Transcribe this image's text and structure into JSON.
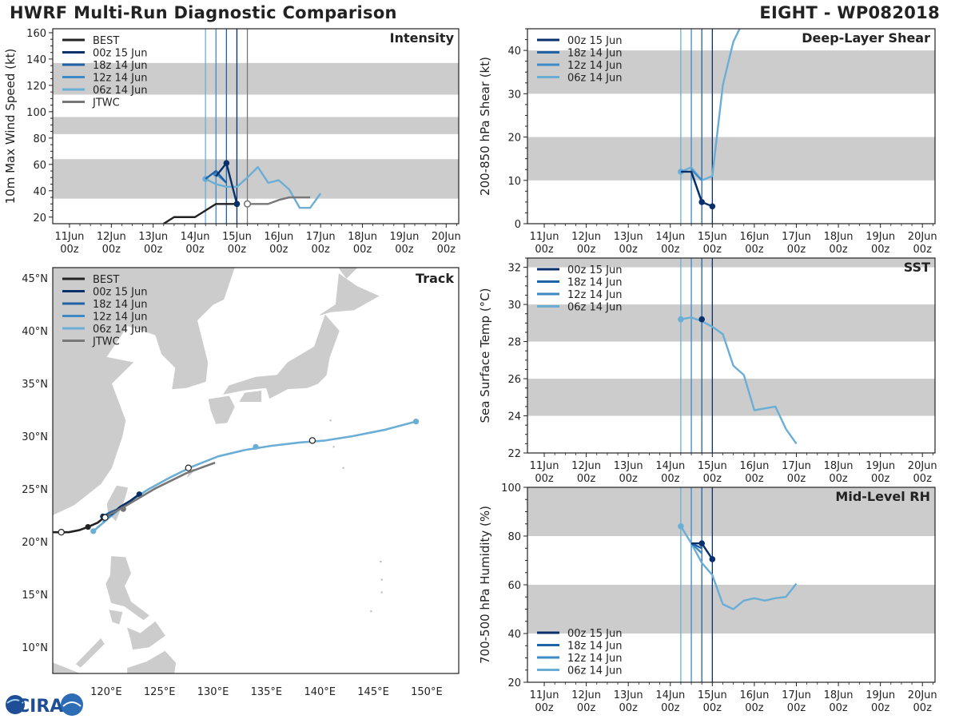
{
  "header": {
    "title": "HWRF Multi-Run Diagnostic Comparison",
    "storm": "EIGHT - WP082018"
  },
  "logo": {
    "text": "CIRA"
  },
  "colors": {
    "BEST": "#222222",
    "r00z15": "#08306b",
    "r18z14": "#1f62a6",
    "r12z14": "#3d8ac6",
    "r06z14": "#6aaed6",
    "JTWC": "#777777",
    "band": "#cccccc"
  },
  "time_ticks": [
    "11Jun",
    "12Jun",
    "13Jun",
    "14Jun",
    "15Jun",
    "16Jun",
    "17Jun",
    "18Jun",
    "19Jun",
    "20Jun"
  ],
  "time_tick_sub": "00z",
  "chart_data": [
    {
      "id": "intensity",
      "type": "line",
      "title": "Intensity",
      "ylabel": "10m Max Wind Speed (kt)",
      "xlim": [
        10.6,
        20.3
      ],
      "ylim": [
        15,
        163
      ],
      "yticks": [
        20,
        40,
        60,
        80,
        100,
        120,
        140,
        160
      ],
      "bands": [
        [
          34,
          64
        ],
        [
          83,
          96
        ],
        [
          113,
          137
        ]
      ],
      "vlines": [
        {
          "x": 14.25,
          "key": "r06z14"
        },
        {
          "x": 14.5,
          "key": "r12z14"
        },
        {
          "x": 14.75,
          "key": "r18z14"
        },
        {
          "x": 15.0,
          "key": "r00z15"
        },
        {
          "x": 15.25,
          "key": "JTWC"
        }
      ],
      "legend": [
        "BEST",
        "00z 15 Jun",
        "18z 14 Jun",
        "12z 14 Jun",
        "06z 14 Jun",
        "JTWC"
      ],
      "series": [
        {
          "name": "BEST",
          "key": "BEST",
          "x": [
            13.25,
            13.5,
            13.75,
            14.0,
            14.25,
            14.5,
            14.75,
            15.0
          ],
          "values": [
            15,
            20,
            20,
            20,
            25,
            30,
            30,
            30
          ],
          "markers": [
            [
              15.0,
              30
            ]
          ]
        },
        {
          "name": "06z 14 Jun",
          "key": "r06z14",
          "x": [
            14.25,
            14.5,
            14.75,
            15.0,
            15.25,
            15.5,
            15.75,
            16.0,
            16.25,
            16.5,
            16.75,
            17.0
          ],
          "values": [
            49,
            45,
            43,
            43,
            50,
            58,
            46,
            48,
            41,
            27,
            27,
            38
          ],
          "markers": [
            [
              14.25,
              49
            ]
          ]
        },
        {
          "name": "12z 14 Jun",
          "key": "r12z14",
          "x": [
            14.5,
            14.75
          ],
          "values": [
            53,
            46
          ],
          "markers": [
            [
              14.5,
              53
            ]
          ]
        },
        {
          "name": "18z 14 Jun",
          "key": "r18z14",
          "x": [
            14.25,
            14.5,
            14.75
          ],
          "values": [
            49,
            55,
            46
          ],
          "markers": []
        },
        {
          "name": "00z 15 Jun",
          "key": "r00z15",
          "x": [
            14.5,
            14.75,
            15.0
          ],
          "values": [
            51,
            61,
            30
          ],
          "markers": [
            [
              14.75,
              61
            ],
            [
              15.0,
              30
            ]
          ]
        },
        {
          "name": "JTWC",
          "key": "JTWC",
          "x": [
            15.25,
            15.5,
            15.75,
            16.0,
            16.25,
            16.5,
            16.75
          ],
          "values": [
            30,
            30,
            30,
            33,
            35,
            35,
            35
          ],
          "markers": [
            [
              15.25,
              30
            ]
          ],
          "open": true
        }
      ]
    },
    {
      "id": "shear",
      "type": "line",
      "title": "Deep-Layer Shear",
      "ylabel": "200-850 hPa Shear (kt)",
      "xlim": [
        10.6,
        20.3
      ],
      "ylim": [
        0,
        45
      ],
      "yticks": [
        0,
        10,
        20,
        30,
        40
      ],
      "bands": [
        [
          10,
          20
        ],
        [
          30,
          40
        ]
      ],
      "vlines": [
        {
          "x": 14.25,
          "key": "r06z14"
        },
        {
          "x": 14.5,
          "key": "r12z14"
        },
        {
          "x": 14.75,
          "key": "r18z14"
        },
        {
          "x": 15.0,
          "key": "r00z15"
        }
      ],
      "legend": [
        "00z 15 Jun",
        "18z 14 Jun",
        "12z 14 Jun",
        "06z 14 Jun"
      ],
      "series": [
        {
          "name": "06z 14 Jun",
          "key": "r06z14",
          "x": [
            14.25,
            14.5,
            14.75,
            15.0,
            15.25,
            15.5,
            15.75
          ],
          "values": [
            12,
            13,
            10,
            11,
            32,
            42,
            47
          ],
          "markers": [
            [
              14.25,
              12
            ]
          ]
        },
        {
          "name": "12z 14 Jun",
          "key": "r12z14",
          "x": [
            14.5,
            14.75
          ],
          "values": [
            12.5,
            10
          ],
          "markers": []
        },
        {
          "name": "18z 14 Jun",
          "key": "r18z14",
          "x": [
            14.5,
            14.75
          ],
          "values": [
            12,
            5
          ],
          "markers": []
        },
        {
          "name": "00z 15 Jun",
          "key": "r00z15",
          "x": [
            14.25,
            14.5,
            14.75,
            15.0
          ],
          "values": [
            12,
            12,
            5,
            4
          ],
          "markers": [
            [
              14.75,
              5
            ],
            [
              15.0,
              4
            ]
          ]
        }
      ]
    },
    {
      "id": "sst",
      "type": "line",
      "title": "SST",
      "ylabel": "Sea Surface Temp (°C)",
      "xlim": [
        10.6,
        20.3
      ],
      "ylim": [
        22,
        32.5
      ],
      "yticks": [
        22,
        24,
        26,
        28,
        30,
        32
      ],
      "bands": [
        [
          24,
          26
        ],
        [
          28,
          30
        ],
        [
          32,
          32.5
        ]
      ],
      "vlines": [
        {
          "x": 14.25,
          "key": "r06z14"
        },
        {
          "x": 14.5,
          "key": "r12z14"
        },
        {
          "x": 14.75,
          "key": "r18z14"
        },
        {
          "x": 15.0,
          "key": "r00z15"
        }
      ],
      "legend": [
        "00z 15 Jun",
        "18z 14 Jun",
        "12z 14 Jun",
        "06z 14 Jun"
      ],
      "series": [
        {
          "name": "06z 14 Jun",
          "key": "r06z14",
          "x": [
            14.25,
            14.5,
            14.75,
            15.0,
            15.25,
            15.5,
            15.75,
            16.0,
            16.25,
            16.5,
            16.75,
            17.0
          ],
          "values": [
            29.2,
            29.3,
            29.1,
            28.8,
            28.4,
            26.7,
            26.2,
            24.3,
            24.4,
            24.5,
            23.3,
            22.5
          ],
          "markers": [
            [
              14.25,
              29.2
            ]
          ]
        },
        {
          "name": "00z 15 Jun",
          "key": "r00z15",
          "x": [
            14.75
          ],
          "values": [
            29.2
          ],
          "markers": [
            [
              14.75,
              29.2
            ]
          ]
        }
      ]
    },
    {
      "id": "rh",
      "type": "line",
      "title": "Mid-Level RH",
      "ylabel": "700-500 hPa Humidity (%)",
      "xlim": [
        10.6,
        20.3
      ],
      "ylim": [
        20,
        100
      ],
      "yticks": [
        20,
        40,
        60,
        80,
        100
      ],
      "bands": [
        [
          40,
          60
        ],
        [
          80,
          100
        ]
      ],
      "vlines": [
        {
          "x": 14.25,
          "key": "r06z14"
        },
        {
          "x": 14.5,
          "key": "r12z14"
        },
        {
          "x": 14.75,
          "key": "r18z14"
        },
        {
          "x": 15.0,
          "key": "r00z15"
        }
      ],
      "legend": [
        "00z 15 Jun",
        "18z 14 Jun",
        "12z 14 Jun",
        "06z 14 Jun"
      ],
      "series": [
        {
          "name": "06z 14 Jun",
          "key": "r06z14",
          "x": [
            14.25,
            14.5,
            14.75,
            15.0,
            15.25,
            15.5,
            15.75,
            16.0,
            16.25,
            16.5,
            16.75,
            17.0
          ],
          "values": [
            84,
            77,
            69,
            64,
            52,
            50,
            53.5,
            54.5,
            53.5,
            54.5,
            55,
            60.5
          ],
          "markers": [
            [
              14.25,
              84
            ]
          ]
        },
        {
          "name": "12z 14 Jun",
          "key": "r12z14",
          "x": [
            14.5,
            14.75
          ],
          "values": [
            77,
            73
          ],
          "markers": []
        },
        {
          "name": "18z 14 Jun",
          "key": "r18z14",
          "x": [
            14.5,
            14.75
          ],
          "values": [
            77,
            75
          ],
          "markers": []
        },
        {
          "name": "00z 15 Jun",
          "key": "r00z15",
          "x": [
            14.5,
            14.75,
            15.0
          ],
          "values": [
            77,
            77,
            70.5
          ],
          "markers": [
            [
              14.75,
              77
            ],
            [
              15.0,
              70.5
            ]
          ]
        }
      ]
    },
    {
      "id": "track",
      "type": "line",
      "title": "Track",
      "lon_lim": [
        115,
        153
      ],
      "lat_lim": [
        7.5,
        46
      ],
      "lat_ticks": [
        [
          "10°N",
          10
        ],
        [
          "15°N",
          15
        ],
        [
          "20°N",
          20
        ],
        [
          "25°N",
          25
        ],
        [
          "30°N",
          30
        ],
        [
          "35°N",
          35
        ],
        [
          "40°N",
          40
        ],
        [
          "45°N",
          45
        ]
      ],
      "lon_ticks": [
        [
          "120°E",
          120
        ],
        [
          "125°E",
          125
        ],
        [
          "130°E",
          130
        ],
        [
          "135°E",
          135
        ],
        [
          "140°E",
          140
        ],
        [
          "145°E",
          145
        ],
        [
          "150°E",
          150
        ]
      ],
      "legend": [
        "BEST",
        "00z 15 Jun",
        "18z 14 Jun",
        "12z 14 Jun",
        "06z 14 Jun",
        "JTWC"
      ],
      "series": [
        {
          "name": "06z 14 Jun",
          "key": "r06z14",
          "lon": [
            118.8,
            120.3,
            122.0,
            124.0,
            126.0,
            128.0,
            130.5,
            133.0,
            135.5,
            138.0,
            140.5,
            143.0,
            146.0,
            149.0
          ],
          "lat": [
            21.0,
            22.3,
            23.7,
            25.0,
            26.1,
            27.1,
            28.1,
            28.7,
            29.1,
            29.4,
            29.6,
            30.0,
            30.6,
            31.4
          ],
          "markers": [
            [
              118.8,
              21.0,
              "fill"
            ],
            [
              134.0,
              29.0,
              "fill"
            ],
            [
              149.0,
              31.4,
              "fill"
            ],
            [
              127.7,
              27.0,
              "open"
            ],
            [
              139.3,
              29.6,
              "open"
            ]
          ]
        },
        {
          "name": "12z 14 Jun",
          "key": "r12z14",
          "lon": [
            119.7,
            120.3,
            121.0
          ],
          "lat": [
            21.9,
            22.4,
            22.9
          ],
          "markers": []
        },
        {
          "name": "18z 14 Jun",
          "key": "r18z14",
          "lon": [
            119.7,
            120.4,
            120.9
          ],
          "lat": [
            22.4,
            22.8,
            23.0
          ],
          "markers": []
        },
        {
          "name": "00z 15 Jun",
          "key": "r00z15",
          "lon": [
            119.7,
            120.5,
            121.3,
            122.3,
            123.1
          ],
          "lat": [
            22.4,
            22.6,
            23.3,
            23.9,
            24.5
          ],
          "markers": [
            [
              119.7,
              22.4,
              "fill"
            ],
            [
              123.1,
              24.5,
              "fill"
            ]
          ]
        },
        {
          "name": "JTWC",
          "key": "JTWC",
          "lon": [
            120.0,
            122.0,
            124.5,
            127.5,
            130.2
          ],
          "lat": [
            22.4,
            23.5,
            25.0,
            26.5,
            27.5
          ],
          "markers": [
            [
              121.6,
              23.1,
              "fill"
            ]
          ]
        },
        {
          "name": "BEST",
          "key": "BEST",
          "lon": [
            115.0,
            116.5,
            117.5,
            118.3,
            119.2,
            119.7,
            120.0
          ],
          "lat": [
            20.9,
            20.9,
            21.1,
            21.4,
            21.8,
            22.2,
            22.4
          ],
          "markers": [
            [
              118.3,
              21.4,
              "fill"
            ],
            [
              115.8,
              20.9,
              "open"
            ],
            [
              119.9,
              22.3,
              "open"
            ]
          ]
        }
      ]
    }
  ]
}
